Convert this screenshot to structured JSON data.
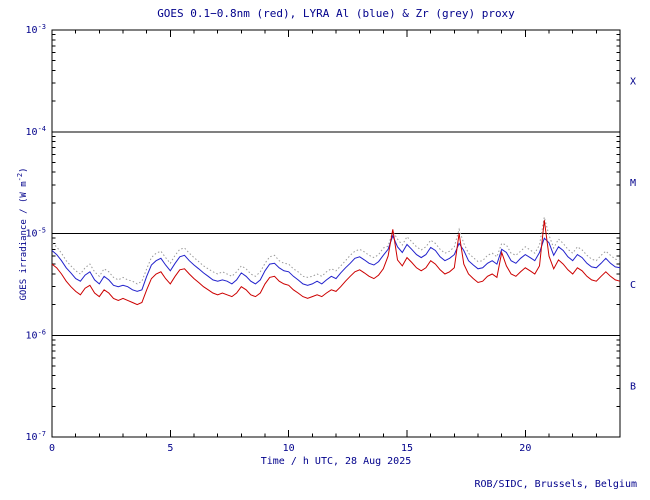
{
  "chart_data": {
    "type": "line",
    "title": "GOES 0.1−0.8nm (red), LYRA Al (blue) & Zr (grey) proxy",
    "xlabel": "Time / h UTC, 28 Aug 2025",
    "ylabel": {
      "pre": "GOES irradiance / (W m",
      "sup": "-2",
      "post": ")"
    },
    "credit": "ROB/SIDC, Brussels, Belgium",
    "text_color": "#00008b",
    "frame_color": "#000000",
    "xlim": [
      0,
      24
    ],
    "ylim_log10": [
      -7,
      -3
    ],
    "xticks_major": [
      {
        "v": 0,
        "label": "0"
      },
      {
        "v": 5,
        "label": "5"
      },
      {
        "v": 10,
        "label": "10"
      },
      {
        "v": 15,
        "label": "15"
      },
      {
        "v": 20,
        "label": "20"
      }
    ],
    "xtick_minor_step": 1,
    "ytick_exponents": [
      "-3",
      "-4",
      "-5",
      "-6",
      "-7"
    ],
    "class_boundaries_log10": [
      -4,
      -5,
      -6
    ],
    "flare_classes": [
      {
        "label": "X",
        "mid_log10": -3.5
      },
      {
        "label": "M",
        "mid_log10": -4.5
      },
      {
        "label": "C",
        "mid_log10": -5.5
      },
      {
        "label": "B",
        "mid_log10": -6.5
      }
    ],
    "x_start": 0,
    "x_step": 0.2,
    "values_scale": 1e-06,
    "values_unit": "1e-6 W m^-2",
    "series": [
      {
        "name": "LYRA Zr proxy",
        "color": "#9a9a9a",
        "style": "dotted",
        "values": [
          8.0,
          7.4,
          6.4,
          5.4,
          4.8,
          4.3,
          4.0,
          4.6,
          5.0,
          4.2,
          3.8,
          4.5,
          4.2,
          3.7,
          3.5,
          3.7,
          3.5,
          3.4,
          3.2,
          3.4,
          4.5,
          5.8,
          6.4,
          6.7,
          5.8,
          5.1,
          6.1,
          7.0,
          7.2,
          6.4,
          5.8,
          5.3,
          4.8,
          4.5,
          4.2,
          4.0,
          4.2,
          4.0,
          3.8,
          4.2,
          4.8,
          4.5,
          4.0,
          3.8,
          4.2,
          5.1,
          5.9,
          6.1,
          5.4,
          5.1,
          5.0,
          4.5,
          4.2,
          3.8,
          3.7,
          3.8,
          4.0,
          3.8,
          4.2,
          4.5,
          4.3,
          4.8,
          5.4,
          6.1,
          6.7,
          7.0,
          6.6,
          6.1,
          5.8,
          6.2,
          7.2,
          7.5,
          10.5,
          8.8,
          7.7,
          9.3,
          8.3,
          7.4,
          6.9,
          7.4,
          8.6,
          8.0,
          7.0,
          6.4,
          6.7,
          7.4,
          11.0,
          8.0,
          6.4,
          5.8,
          5.3,
          5.4,
          6.1,
          6.4,
          5.9,
          8.0,
          7.7,
          6.4,
          6.1,
          6.7,
          7.4,
          6.9,
          6.4,
          7.7,
          14.5,
          9.6,
          7.2,
          8.8,
          8.0,
          7.0,
          6.4,
          7.4,
          6.9,
          6.1,
          5.6,
          5.4,
          6.1,
          6.7,
          6.1,
          5.6,
          5.4
        ]
      },
      {
        "name": "LYRA Al",
        "color": "#2222cc",
        "style": "solid",
        "values": [
          6.8,
          6.2,
          5.4,
          4.6,
          4.1,
          3.6,
          3.4,
          3.9,
          4.2,
          3.5,
          3.2,
          3.8,
          3.5,
          3.1,
          3.0,
          3.1,
          3.0,
          2.8,
          2.7,
          2.8,
          3.8,
          4.9,
          5.4,
          5.7,
          4.9,
          4.3,
          5.1,
          5.9,
          6.1,
          5.4,
          4.9,
          4.5,
          4.1,
          3.8,
          3.5,
          3.4,
          3.5,
          3.4,
          3.2,
          3.5,
          4.1,
          3.8,
          3.4,
          3.2,
          3.5,
          4.3,
          5.0,
          5.1,
          4.6,
          4.3,
          4.2,
          3.8,
          3.5,
          3.2,
          3.1,
          3.2,
          3.4,
          3.2,
          3.5,
          3.8,
          3.6,
          4.1,
          4.6,
          5.1,
          5.7,
          5.9,
          5.5,
          5.1,
          4.9,
          5.3,
          6.1,
          7.0,
          9.5,
          7.4,
          6.5,
          7.8,
          7.0,
          6.2,
          5.8,
          6.2,
          7.3,
          6.8,
          5.9,
          5.4,
          5.7,
          6.2,
          8.0,
          6.8,
          5.4,
          4.9,
          4.5,
          4.6,
          5.1,
          5.4,
          5.0,
          7.0,
          6.5,
          5.4,
          5.1,
          5.7,
          6.2,
          5.8,
          5.4,
          6.5,
          9.0,
          8.1,
          6.1,
          7.4,
          6.8,
          5.9,
          5.4,
          6.2,
          5.8,
          5.1,
          4.7,
          4.6,
          5.1,
          5.7,
          5.1,
          4.7,
          4.6
        ]
      },
      {
        "name": "GOES 0.1-0.8nm",
        "color": "#cc0000",
        "style": "solid",
        "values": [
          5.0,
          4.6,
          4.0,
          3.4,
          3.0,
          2.7,
          2.5,
          2.9,
          3.1,
          2.6,
          2.4,
          2.8,
          2.6,
          2.3,
          2.2,
          2.3,
          2.2,
          2.1,
          2.0,
          2.1,
          2.8,
          3.6,
          4.0,
          4.2,
          3.6,
          3.2,
          3.8,
          4.4,
          4.5,
          4.0,
          3.6,
          3.3,
          3.0,
          2.8,
          2.6,
          2.5,
          2.6,
          2.5,
          2.4,
          2.6,
          3.0,
          2.8,
          2.5,
          2.4,
          2.6,
          3.2,
          3.7,
          3.8,
          3.4,
          3.2,
          3.1,
          2.8,
          2.6,
          2.4,
          2.3,
          2.4,
          2.5,
          2.4,
          2.6,
          2.8,
          2.7,
          3.0,
          3.4,
          3.8,
          4.2,
          4.4,
          4.1,
          3.8,
          3.6,
          3.9,
          4.5,
          6.0,
          11.0,
          5.5,
          4.8,
          5.8,
          5.2,
          4.6,
          4.3,
          4.6,
          5.4,
          5.0,
          4.4,
          4.0,
          4.2,
          4.6,
          10.0,
          5.0,
          4.0,
          3.6,
          3.3,
          3.4,
          3.8,
          4.0,
          3.7,
          6.5,
          4.8,
          4.0,
          3.8,
          4.2,
          4.6,
          4.3,
          4.0,
          4.8,
          13.5,
          6.0,
          4.5,
          5.5,
          5.0,
          4.4,
          4.0,
          4.6,
          4.3,
          3.8,
          3.5,
          3.4,
          3.8,
          4.2,
          3.8,
          3.5,
          3.4
        ]
      }
    ]
  }
}
